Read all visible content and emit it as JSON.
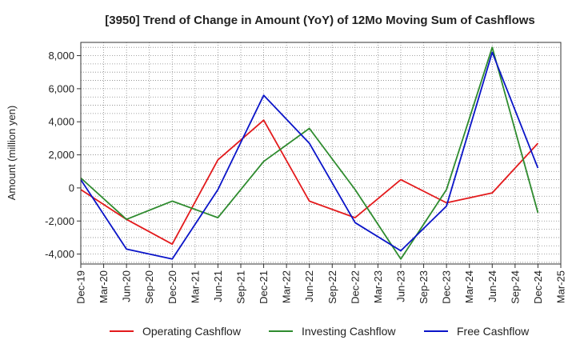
{
  "chart_data": {
    "type": "line",
    "title": "[3950]  Trend of Change in Amount (YoY) of 12Mo Moving Sum of Cashflows",
    "xlabel": "",
    "ylabel": "Amount (million yen)",
    "ylim": [
      -4600,
      8800
    ],
    "yticks": [
      -4000,
      -2000,
      0,
      2000,
      4000,
      6000,
      8000
    ],
    "ytick_labels": [
      "-4,000",
      "-2,000",
      "0",
      "2,000",
      "4,000",
      "6,000",
      "8,000"
    ],
    "x_ticks": [
      "Dec-19",
      "Mar-20",
      "Jun-20",
      "Sep-20",
      "Dec-20",
      "Mar-21",
      "Jun-21",
      "Sep-21",
      "Dec-21",
      "Mar-22",
      "Jun-22",
      "Sep-22",
      "Dec-22",
      "Mar-23",
      "Jun-23",
      "Sep-23",
      "Dec-23",
      "Mar-24",
      "Jun-24",
      "Sep-24",
      "Dec-24",
      "Mar-25"
    ],
    "x": [
      "Dec-19",
      "Jun-20",
      "Dec-20",
      "Jun-21",
      "Dec-21",
      "Jun-22",
      "Dec-22",
      "Jun-23",
      "Dec-23",
      "Jun-24",
      "Dec-24"
    ],
    "grid": true,
    "legend_position": "bottom",
    "series": [
      {
        "name": "Operating Cashflow",
        "color": "#e31a1c",
        "values": [
          -100,
          -1900,
          -3400,
          1700,
          4100,
          -800,
          -1800,
          500,
          -900,
          -300,
          2700
        ]
      },
      {
        "name": "Investing Cashflow",
        "color": "#2e8b2e",
        "values": [
          600,
          -1900,
          -800,
          -1800,
          1600,
          3600,
          -100,
          -4300,
          -100,
          8500,
          -1500
        ]
      },
      {
        "name": "Free Cashflow",
        "color": "#0a14c8",
        "values": [
          500,
          -3700,
          -4300,
          -100,
          5600,
          2700,
          -2100,
          -3800,
          -1100,
          8200,
          1200
        ]
      }
    ]
  }
}
